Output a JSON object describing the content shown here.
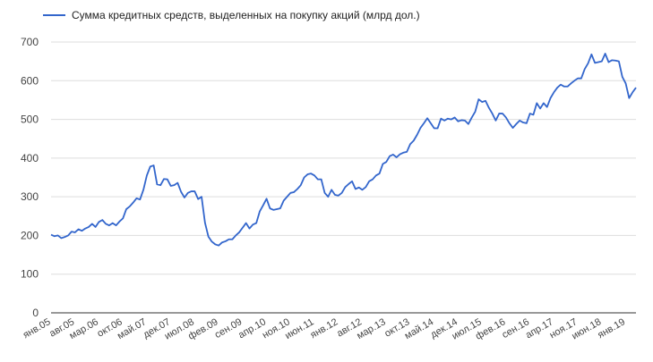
{
  "chart_data": {
    "type": "line",
    "title": "",
    "xlabel": "",
    "ylabel": "",
    "ylim": [
      0,
      700
    ],
    "yticks": [
      0,
      100,
      200,
      300,
      400,
      500,
      600,
      700
    ],
    "grid": "horizontal",
    "legend_position": "top-left",
    "color": "#3366cc",
    "x_tick_labels": [
      "янв.05",
      "авг.05",
      "мар.06",
      "окт.06",
      "май.07",
      "дек.07",
      "июл.08",
      "фев.09",
      "сен.09",
      "апр.10",
      "ноя.10",
      "июн.11",
      "янв.12",
      "авг.12",
      "мар.13",
      "окт.13",
      "май.14",
      "дек.14",
      "июл.15",
      "фев.16",
      "сен.16",
      "апр.17",
      "ноя.17",
      "июн.18",
      "янв.19"
    ],
    "series": [
      {
        "name": "Сумма кредитных средств, выделенных на покупку акций (млрд дол.)",
        "values": [
          202,
          198,
          200,
          193,
          196,
          200,
          210,
          208,
          216,
          212,
          218,
          222,
          230,
          222,
          235,
          240,
          230,
          226,
          232,
          226,
          236,
          244,
          268,
          275,
          285,
          296,
          293,
          318,
          355,
          378,
          381,
          332,
          330,
          346,
          345,
          328,
          330,
          336,
          313,
          298,
          310,
          314,
          314,
          294,
          300,
          233,
          197,
          184,
          177,
          174,
          182,
          185,
          190,
          190,
          200,
          208,
          220,
          232,
          218,
          228,
          232,
          262,
          278,
          295,
          270,
          266,
          268,
          270,
          290,
          300,
          310,
          312,
          320,
          330,
          350,
          358,
          360,
          355,
          345,
          345,
          310,
          300,
          318,
          305,
          303,
          310,
          325,
          333,
          340,
          320,
          324,
          318,
          325,
          340,
          345,
          355,
          360,
          385,
          390,
          405,
          409,
          402,
          410,
          414,
          416,
          436,
          445,
          460,
          478,
          490,
          503,
          490,
          477,
          477,
          502,
          497,
          502,
          500,
          505,
          495,
          498,
          497,
          488,
          505,
          520,
          552,
          545,
          548,
          530,
          515,
          497,
          515,
          515,
          505,
          490,
          478,
          488,
          497,
          492,
          490,
          515,
          512,
          542,
          528,
          542,
          532,
          555,
          570,
          582,
          590,
          585,
          585,
          593,
          600,
          606,
          606,
          630,
          645,
          668,
          646,
          648,
          650,
          670,
          648,
          653,
          652,
          650,
          610,
          593,
          555,
          570,
          582
        ]
      }
    ]
  }
}
